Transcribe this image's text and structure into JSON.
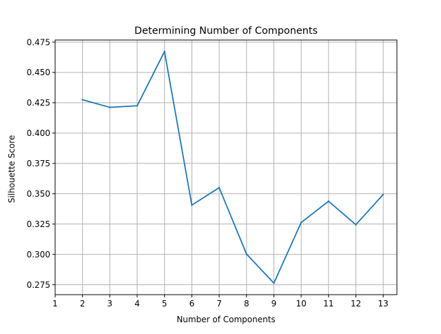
{
  "chart_data": {
    "type": "line",
    "title": "Determining Number of Components",
    "xlabel": "Number of Components",
    "ylabel": "Silhouette Score",
    "x": [
      2,
      3,
      4,
      5,
      6,
      7,
      8,
      9,
      10,
      11,
      12,
      13
    ],
    "series": [
      {
        "values": [
          0.4275,
          0.4212,
          0.4225,
          0.4672,
          0.3406,
          0.355,
          0.3003,
          0.2763,
          0.3263,
          0.3438,
          0.3245,
          0.3494
        ],
        "color": "#1f77b4"
      }
    ],
    "xticks": [
      "1",
      "2",
      "3",
      "4",
      "5",
      "6",
      "7",
      "8",
      "9",
      "10",
      "11",
      "12",
      "13"
    ],
    "yticks": [
      "0.275",
      "0.300",
      "0.325",
      "0.350",
      "0.375",
      "0.400",
      "0.425",
      "0.450",
      "0.475"
    ],
    "xlim": [
      1,
      13.5
    ],
    "ylim": [
      0.2668,
      0.4767
    ],
    "grid": true
  }
}
